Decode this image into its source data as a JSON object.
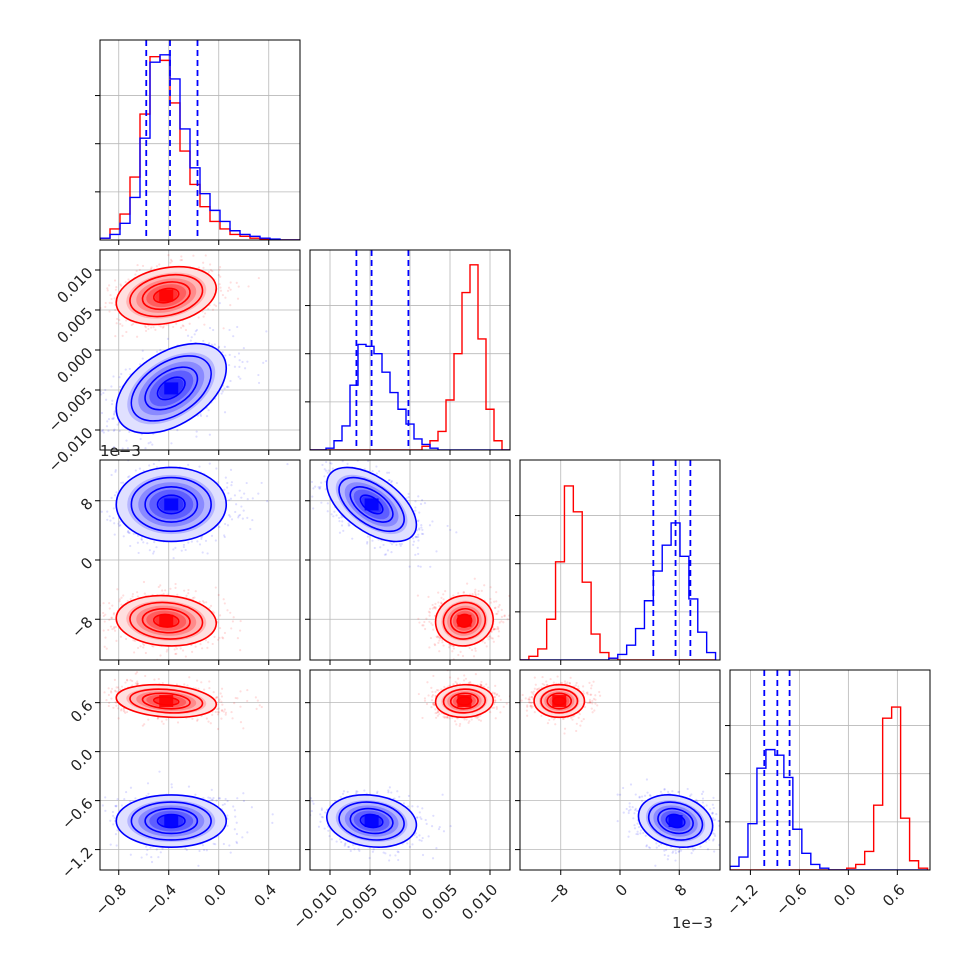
{
  "chart_data": {
    "type": "corner",
    "title": "",
    "parameters": [
      {
        "range": [
          -0.95,
          0.65
        ],
        "ticks": [
          -0.8,
          -0.4,
          0.0,
          0.4
        ],
        "tick_labels": [
          "−0.8",
          "−0.4",
          "0.0",
          "0.4"
        ],
        "offset_label": ""
      },
      {
        "range": [
          -0.0125,
          0.0125
        ],
        "ticks": [
          -0.01,
          -0.005,
          0.0,
          0.005,
          0.01
        ],
        "tick_labels": [
          "−0.010",
          "−0.005",
          "0.000",
          "0.005",
          "0.010"
        ],
        "offset_label": ""
      },
      {
        "range": [
          -0.0135,
          0.0135
        ],
        "ticks": [
          -0.008,
          0.0,
          0.008
        ],
        "tick_labels": [
          "−8",
          "0",
          "8"
        ],
        "offset_label": "1e−3"
      },
      {
        "range": [
          -1.45,
          1.0
        ],
        "ticks": [
          -1.2,
          -0.6,
          0.0,
          0.6
        ],
        "tick_labels": [
          "−1.2",
          "−0.6",
          "0.0",
          "0.6"
        ],
        "offset_label": ""
      }
    ],
    "series": [
      {
        "color": "#0000ff",
        "means": [
          -0.38,
          -0.0048,
          0.0075,
          -0.85
        ],
        "stds": [
          0.22,
          0.0028,
          0.0025,
          0.16
        ],
        "correlations": [
          [
            1,
            0,
            0.45
          ],
          [
            1,
            0.45,
            0.15
          ],
          [
            0,
            0.15,
            0.1
          ],
          [
            2,
            0.45,
            -0.25
          ],
          [
            2,
            1,
            -0.55
          ],
          [
            3,
            0.45,
            -0.1
          ],
          [
            3,
            1,
            -0.15
          ],
          [
            3,
            2,
            -0.2
          ]
        ],
        "quantile_lines": [
          [
            -0.58,
            -0.39,
            -0.17
          ],
          [
            -0.0067,
            -0.0048,
            -0.0002
          ],
          [
            0.0045,
            0.0075,
            0.0095
          ],
          [
            -1.03,
            -0.87,
            -0.72
          ]
        ]
      },
      {
        "color": "#ff0000",
        "means": [
          -0.42,
          0.0068,
          -0.0082,
          0.62
        ],
        "stds": [
          0.2,
          0.0018,
          0.0017,
          0.1
        ],
        "correlations": [
          [
            1,
            0,
            0.25
          ],
          [
            2,
            0,
            -0.1
          ],
          [
            2,
            1,
            0.05
          ],
          [
            3,
            0,
            -0.2
          ],
          [
            3,
            1,
            0.05
          ],
          [
            3,
            2,
            0.0
          ]
        ],
        "quantile_lines": []
      }
    ],
    "histograms": [
      {
        "param": 0,
        "edges": [
          -0.95,
          -0.87,
          -0.79,
          -0.71,
          -0.63,
          -0.55,
          -0.47,
          -0.39,
          -0.31,
          -0.23,
          -0.15,
          -0.07,
          0.01,
          0.09,
          0.17,
          0.25,
          0.33,
          0.41,
          0.49,
          0.57,
          0.65
        ],
        "blue": [
          0.01,
          0.03,
          0.09,
          0.23,
          0.55,
          0.96,
          1.0,
          0.87,
          0.6,
          0.39,
          0.25,
          0.16,
          0.1,
          0.05,
          0.03,
          0.02,
          0.01,
          0.005,
          0,
          0
        ],
        "red": [
          0.01,
          0.06,
          0.14,
          0.34,
          0.68,
          0.99,
          0.97,
          0.74,
          0.48,
          0.3,
          0.18,
          0.1,
          0.06,
          0.03,
          0.02,
          0.01,
          0.005,
          0,
          0,
          0
        ]
      },
      {
        "param": 1,
        "edges": [
          -0.0125,
          -0.0115,
          -0.0105,
          -0.0095,
          -0.0085,
          -0.0075,
          -0.0065,
          -0.0055,
          -0.0045,
          -0.0035,
          -0.0025,
          -0.0015,
          -0.0005,
          0.0005,
          0.0015,
          0.0025,
          0.0035,
          0.0045,
          0.0055,
          0.0065,
          0.0075,
          0.0085,
          0.0095,
          0.0105,
          0.0115,
          0.0125
        ],
        "blue": [
          0,
          0,
          0.01,
          0.05,
          0.13,
          0.35,
          0.57,
          0.56,
          0.52,
          0.42,
          0.31,
          0.22,
          0.14,
          0.06,
          0.03,
          0.01,
          0,
          0,
          0,
          0,
          0,
          0,
          0,
          0,
          0
        ],
        "red": [
          0,
          0,
          0,
          0,
          0,
          0,
          0,
          0,
          0,
          0,
          0,
          0,
          0,
          0,
          0.02,
          0.05,
          0.1,
          0.27,
          0.52,
          0.85,
          1.0,
          0.6,
          0.22,
          0.05,
          0
        ]
      },
      {
        "param": 2,
        "edges": [
          -0.0135,
          -0.0123,
          -0.0111,
          -0.0099,
          -0.0087,
          -0.0075,
          -0.0063,
          -0.0051,
          -0.0039,
          -0.0027,
          -0.0015,
          -0.0003,
          0.0009,
          0.0021,
          0.0033,
          0.0045,
          0.0057,
          0.0069,
          0.0081,
          0.0093,
          0.0105,
          0.0117,
          0.0129
        ],
        "blue": [
          0,
          0,
          0,
          0,
          0,
          0,
          0,
          0,
          0,
          0,
          0.01,
          0.03,
          0.08,
          0.17,
          0.32,
          0.48,
          0.62,
          0.74,
          0.56,
          0.33,
          0.15,
          0.04
        ],
        "red": [
          0,
          0.02,
          0.06,
          0.22,
          0.53,
          0.94,
          0.8,
          0.42,
          0.14,
          0.04,
          0.01,
          0,
          0,
          0,
          0,
          0,
          0,
          0,
          0,
          0,
          0,
          0
        ]
      },
      {
        "param": 3,
        "edges": [
          -1.45,
          -1.34,
          -1.23,
          -1.12,
          -1.01,
          -0.9,
          -0.79,
          -0.68,
          -0.57,
          -0.46,
          -0.35,
          -0.24,
          -0.13,
          -0.02,
          0.09,
          0.2,
          0.31,
          0.42,
          0.53,
          0.64,
          0.75,
          0.86,
          0.97
        ],
        "blue": [
          0.02,
          0.07,
          0.25,
          0.55,
          0.65,
          0.62,
          0.5,
          0.22,
          0.09,
          0.03,
          0.01,
          0,
          0,
          0,
          0,
          0,
          0,
          0,
          0,
          0,
          0,
          0
        ],
        "red": [
          0,
          0,
          0,
          0,
          0,
          0,
          0,
          0,
          0,
          0,
          0,
          0,
          0,
          0.01,
          0.03,
          0.1,
          0.35,
          0.82,
          0.88,
          0.28,
          0.05,
          0.01
        ]
      }
    ],
    "grid": true,
    "legend": "none"
  }
}
